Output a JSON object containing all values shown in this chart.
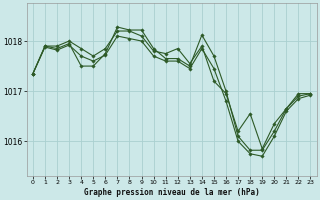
{
  "title": "Graphe pression niveau de la mer (hPa)",
  "background_color": "#cce8e8",
  "grid_color": "#aad0d0",
  "line_color": "#2d5a27",
  "xlim": [
    -0.5,
    23.5
  ],
  "ylim": [
    1015.3,
    1018.75
  ],
  "yticks": [
    1016,
    1017,
    1018
  ],
  "xticks": [
    0,
    1,
    2,
    3,
    4,
    5,
    6,
    7,
    8,
    9,
    10,
    11,
    12,
    13,
    14,
    15,
    16,
    17,
    18,
    19,
    20,
    21,
    22,
    23
  ],
  "series1": {
    "x": [
      0,
      1,
      2,
      3,
      4,
      5,
      6,
      7,
      8,
      9,
      10,
      11,
      12,
      13,
      14,
      15,
      16,
      17,
      18,
      19,
      20,
      21,
      22,
      23
    ],
    "y": [
      1017.35,
      1017.9,
      1017.9,
      1018.0,
      1017.85,
      1017.7,
      1017.85,
      1018.2,
      1018.2,
      1018.1,
      1017.8,
      1017.75,
      1017.85,
      1017.55,
      1017.9,
      1017.2,
      1016.95,
      1016.2,
      1016.55,
      1015.85,
      1016.35,
      1016.65,
      1016.9,
      1016.95
    ]
  },
  "series2": {
    "x": [
      0,
      1,
      2,
      3,
      4,
      5,
      6,
      7,
      8,
      9,
      10,
      11,
      12,
      13,
      14,
      15,
      16,
      17,
      18,
      19,
      20,
      21,
      22,
      23
    ],
    "y": [
      1017.35,
      1017.9,
      1017.85,
      1017.95,
      1017.5,
      1017.5,
      1017.75,
      1018.28,
      1018.22,
      1018.22,
      1017.85,
      1017.65,
      1017.65,
      1017.5,
      1018.12,
      1017.7,
      1017.0,
      1016.1,
      1015.82,
      1015.82,
      1016.2,
      1016.65,
      1016.95,
      1016.95
    ]
  },
  "series3": {
    "x": [
      0,
      1,
      2,
      3,
      4,
      5,
      6,
      7,
      8,
      9,
      10,
      11,
      12,
      13,
      14,
      15,
      16,
      17,
      18,
      19,
      20,
      21,
      22,
      23
    ],
    "y": [
      1017.35,
      1017.88,
      1017.82,
      1017.92,
      1017.7,
      1017.6,
      1017.72,
      1018.1,
      1018.05,
      1018.0,
      1017.7,
      1017.6,
      1017.6,
      1017.45,
      1017.85,
      1017.45,
      1016.8,
      1016.0,
      1015.75,
      1015.7,
      1016.1,
      1016.6,
      1016.85,
      1016.92
    ]
  }
}
